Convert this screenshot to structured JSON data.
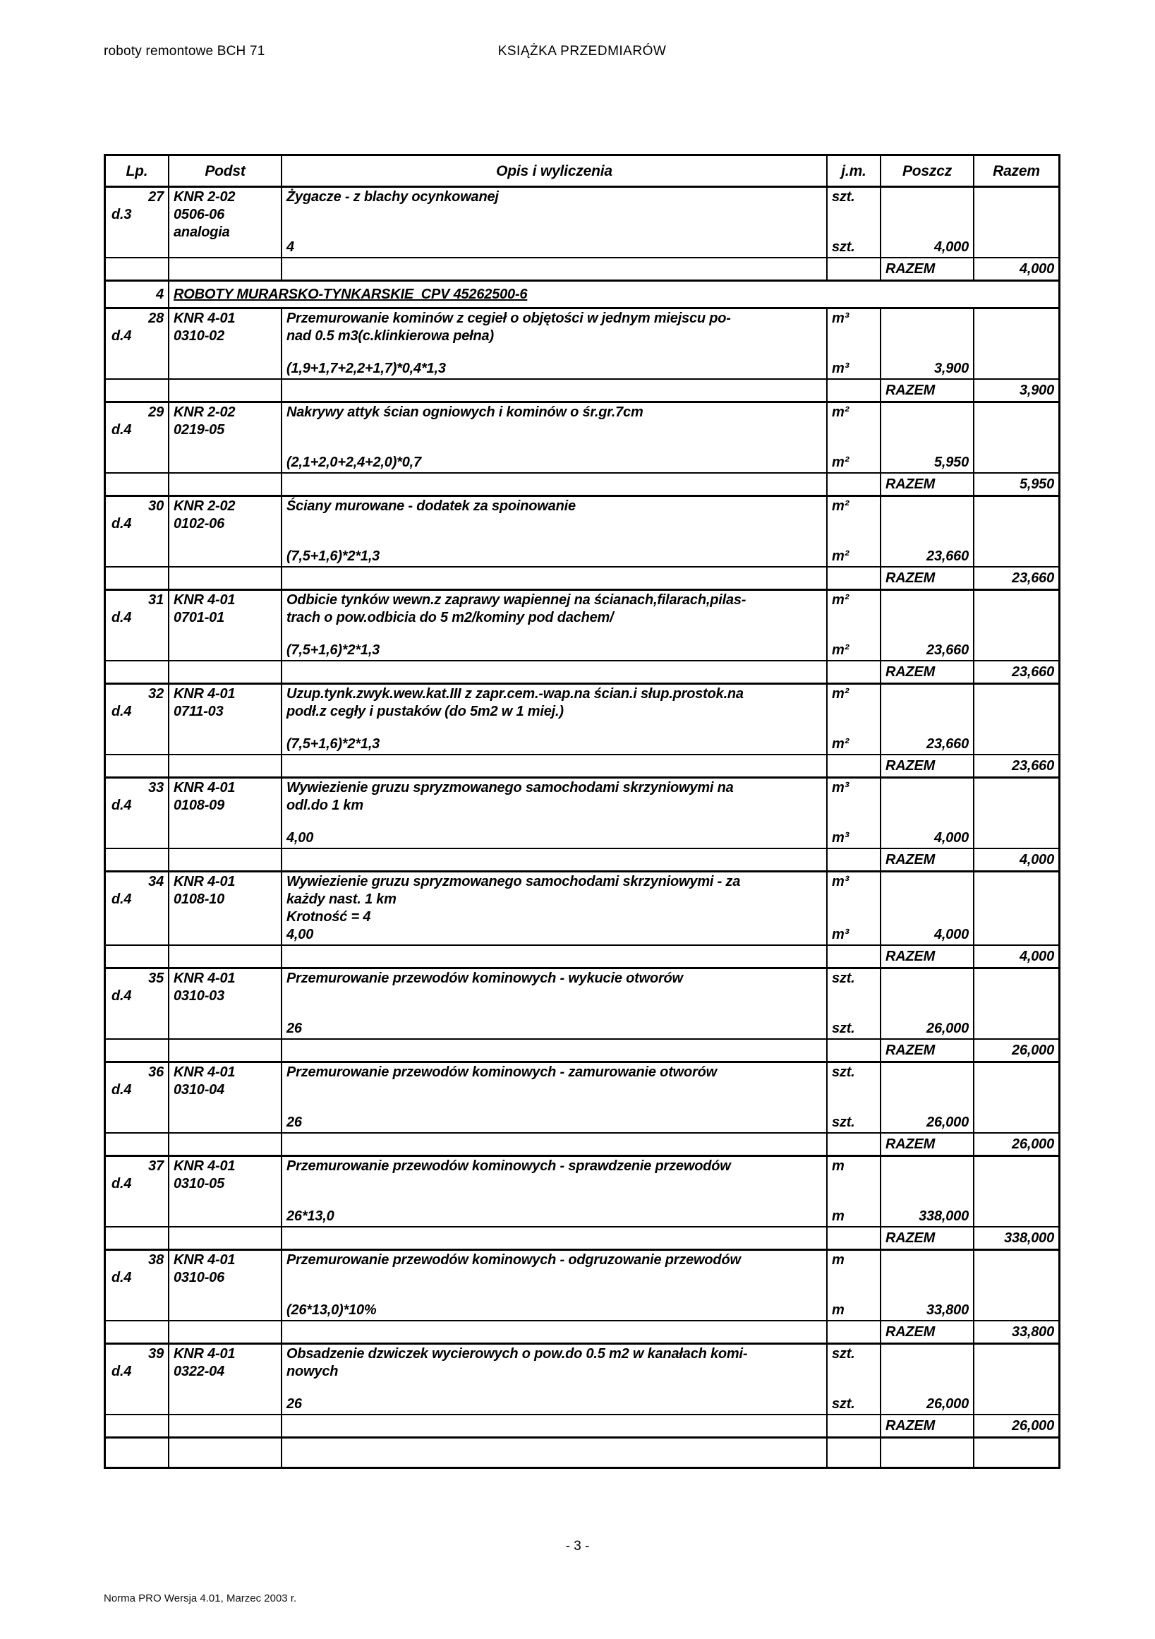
{
  "page": {
    "header_left": "roboty remontowe BCH 71",
    "header_center": "KSIĄŻKA PRZEDMIARÓW",
    "page_number": "- 3 -",
    "footer_note": "Norma PRO Wersja 4.01, Marzec 2003 r."
  },
  "table": {
    "columns": {
      "lp": "Lp.",
      "podst": "Podst",
      "opis": "Opis i wyliczenia",
      "jm": "j.m.",
      "poszcz": "Poszcz",
      "razem": "Razem"
    },
    "razem_label": "RAZEM",
    "section": {
      "lp": "4",
      "title": "ROBOTY MURARSKO-TYNKARSKIE  CPV 45262500-6"
    },
    "items": [
      {
        "lp": "27",
        "dref": "d.3",
        "podst": [
          "KNR 2-02",
          "0506-06",
          "analogia"
        ],
        "desc": [
          "Żygacze  - z blachy ocynkowanej"
        ],
        "unit": "szt.",
        "expr": "4",
        "poszcz": "4,000",
        "razem": "4,000"
      },
      {
        "lp": "28",
        "dref": "d.4",
        "podst": [
          "KNR 4-01",
          "0310-02"
        ],
        "desc": [
          "Przemurowanie kominów z cegieł o objętości w jednym miejscu po-",
          "nad 0.5 m3(c.klinkierowa pełna)"
        ],
        "unit": "m³",
        "expr": "(1,9+1,7+2,2+1,7)*0,4*1,3",
        "poszcz": "3,900",
        "razem": "3,900"
      },
      {
        "lp": "29",
        "dref": "d.4",
        "podst": [
          "KNR 2-02",
          "0219-05"
        ],
        "desc": [
          "Nakrywy attyk ścian ogniowych i kominów o śr.gr.7cm"
        ],
        "unit": "m²",
        "expr": "(2,1+2,0+2,4+2,0)*0,7",
        "poszcz": "5,950",
        "razem": "5,950"
      },
      {
        "lp": "30",
        "dref": "d.4",
        "podst": [
          "KNR 2-02",
          "0102-06"
        ],
        "desc": [
          "Ściany murowane - dodatek za spoinowanie"
        ],
        "unit": "m²",
        "expr": "(7,5+1,6)*2*1,3",
        "poszcz": "23,660",
        "razem": "23,660"
      },
      {
        "lp": "31",
        "dref": "d.4",
        "podst": [
          "KNR 4-01",
          "0701-01"
        ],
        "desc": [
          "Odbicie tynków wewn.z zaprawy wapiennej na ścianach,filarach,pilas-",
          "trach o pow.odbicia do 5 m2/kominy pod dachem/"
        ],
        "unit": "m²",
        "expr": "(7,5+1,6)*2*1,3",
        "poszcz": "23,660",
        "razem": "23,660"
      },
      {
        "lp": "32",
        "dref": "d.4",
        "podst": [
          "KNR 4-01",
          "0711-03"
        ],
        "desc": [
          "Uzup.tynk.zwyk.wew.kat.III z zapr.cem.-wap.na ścian.i słup.prostok.na",
          "podł.z cegły i pustaków (do 5m2 w 1 miej.)"
        ],
        "unit": "m²",
        "expr": "(7,5+1,6)*2*1,3",
        "poszcz": "23,660",
        "razem": "23,660"
      },
      {
        "lp": "33",
        "dref": "d.4",
        "podst": [
          "KNR 4-01",
          "0108-09"
        ],
        "desc": [
          "Wywiezienie gruzu spryzmowanego samochodami skrzyniowymi na",
          "odl.do 1 km"
        ],
        "unit": "m³",
        "expr": "4,00",
        "poszcz": "4,000",
        "razem": "4,000"
      },
      {
        "lp": "34",
        "dref": "d.4",
        "podst": [
          "KNR 4-01",
          "0108-10"
        ],
        "desc": [
          "Wywiezienie gruzu spryzmowanego samochodami skrzyniowymi - za",
          "każdy nast. 1 km",
          "Krotność = 4"
        ],
        "unit": "m³",
        "expr": "4,00",
        "poszcz": "4,000",
        "razem": "4,000"
      },
      {
        "lp": "35",
        "dref": "d.4",
        "podst": [
          "KNR 4-01",
          "0310-03"
        ],
        "desc": [
          "Przemurowanie przewodów kominowych - wykucie otworów"
        ],
        "unit": "szt.",
        "expr": "26",
        "poszcz": "26,000",
        "razem": "26,000"
      },
      {
        "lp": "36",
        "dref": "d.4",
        "podst": [
          "KNR 4-01",
          "0310-04"
        ],
        "desc": [
          "Przemurowanie przewodów kominowych - zamurowanie otworów"
        ],
        "unit": "szt.",
        "expr": "26",
        "poszcz": "26,000",
        "razem": "26,000"
      },
      {
        "lp": "37",
        "dref": "d.4",
        "podst": [
          "KNR 4-01",
          "0310-05"
        ],
        "desc": [
          "Przemurowanie przewodów kominowych - sprawdzenie przewodów"
        ],
        "unit": "m",
        "expr": "26*13,0",
        "poszcz": "338,000",
        "razem": "338,000"
      },
      {
        "lp": "38",
        "dref": "d.4",
        "podst": [
          "KNR 4-01",
          "0310-06"
        ],
        "desc": [
          "Przemurowanie przewodów kominowych - odgruzowanie przewodów"
        ],
        "unit": "m",
        "expr": "(26*13,0)*10%",
        "poszcz": "33,800",
        "razem": "33,800"
      },
      {
        "lp": "39",
        "dref": "d.4",
        "podst": [
          "KNR 4-01",
          "0322-04"
        ],
        "desc": [
          "Obsadzenie dzwiczek wycierowych o pow.do 0.5 m2 w kanałach komi-",
          "nowych"
        ],
        "unit": "szt.",
        "expr": "26",
        "poszcz": "26,000",
        "razem": "26,000"
      }
    ]
  }
}
